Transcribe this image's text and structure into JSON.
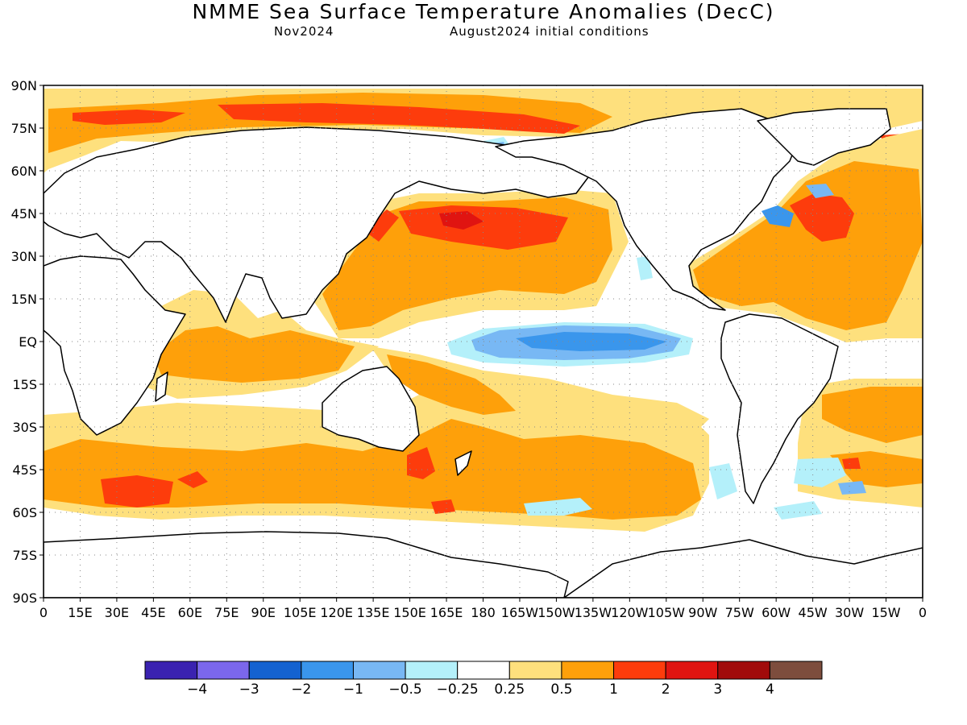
{
  "title": "NMME Sea Surface Temperature Anomalies (DecC)",
  "subtitle_left": "Nov2024",
  "subtitle_right": "August2024 initial conditions",
  "map": {
    "projection": "equirectangular",
    "lon_range": [
      0,
      360
    ],
    "lat_range": [
      -90,
      90
    ],
    "lat_labels": [
      "90N",
      "75N",
      "60N",
      "45N",
      "30N",
      "15N",
      "EQ",
      "15S",
      "30S",
      "45S",
      "60S",
      "75S",
      "90S"
    ],
    "lon_labels": [
      "0",
      "15E",
      "30E",
      "45E",
      "60E",
      "75E",
      "90E",
      "105E",
      "120E",
      "135E",
      "150E",
      "165E",
      "180",
      "165W",
      "150W",
      "135W",
      "120W",
      "105W",
      "90W",
      "75W",
      "60W",
      "45W",
      "30W",
      "15W",
      "0"
    ],
    "grid": "dotted every 15 degrees",
    "land_color": "#ffffff",
    "coastline_color": "#000000"
  },
  "colorbar": {
    "colors": [
      "#3a22b0",
      "#7b67ec",
      "#1462d0",
      "#3a96ec",
      "#78b8f4",
      "#b4f0fa",
      "#ffffff",
      "#fee07d",
      "#fea00a",
      "#fd3c0c",
      "#e01411",
      "#a10b0b",
      "#7d4d3d"
    ],
    "tick_labels": [
      "−4",
      "−3",
      "−2",
      "−1",
      "−0.5",
      "−0.25",
      "0.25",
      "0.5",
      "1",
      "2",
      "3",
      "4"
    ]
  }
}
